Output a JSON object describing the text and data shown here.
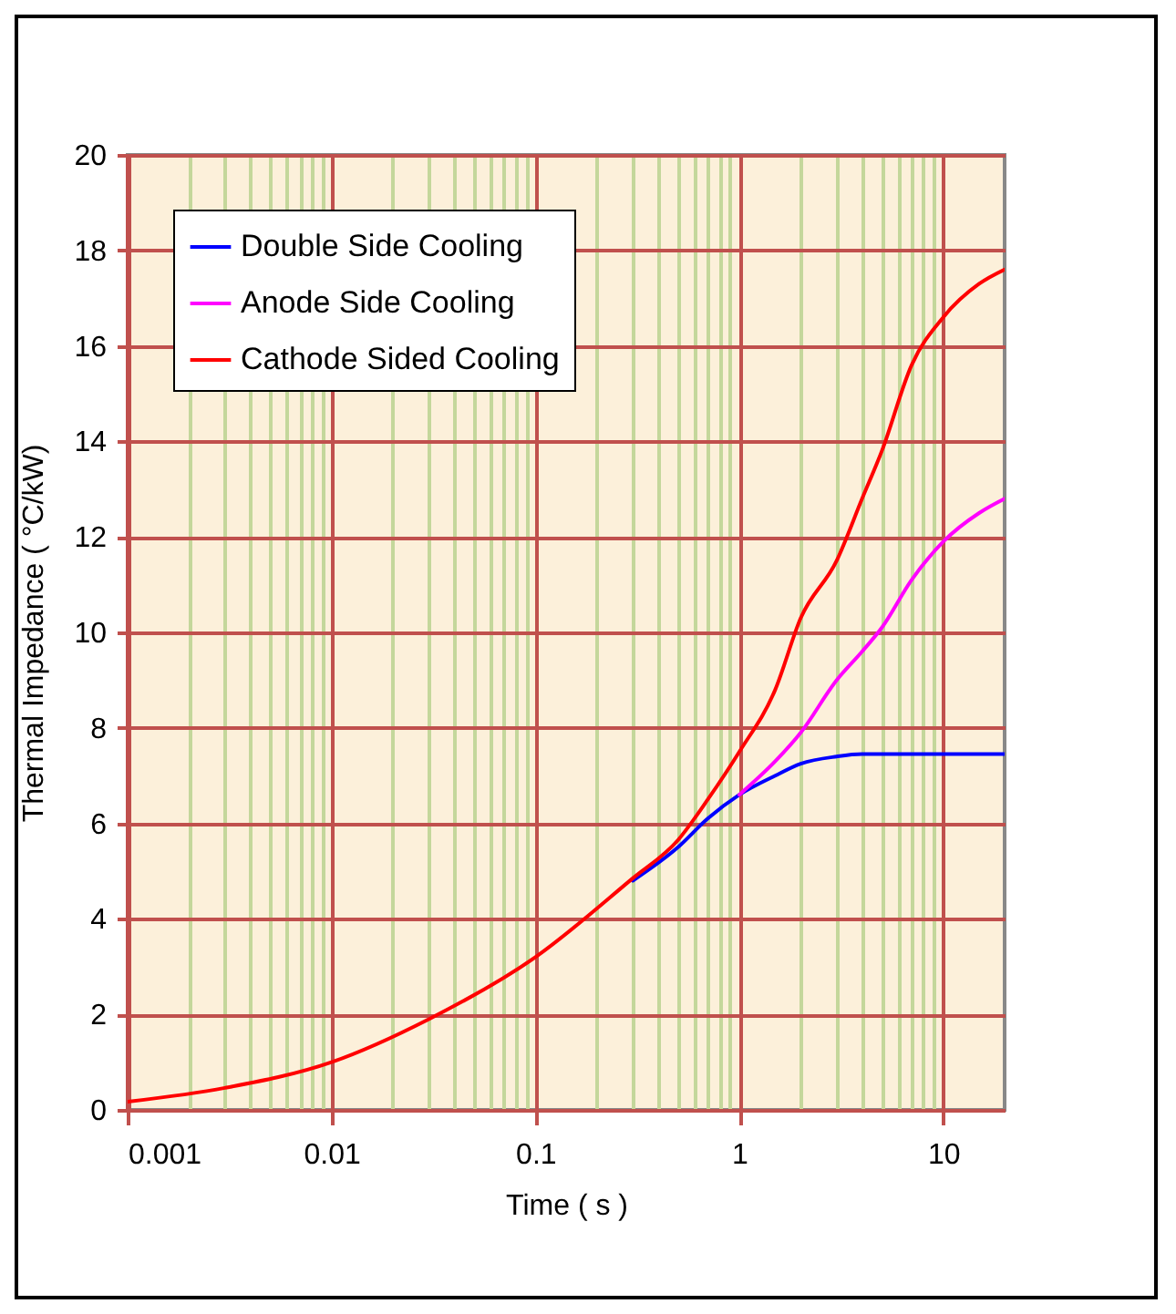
{
  "chart_data": {
    "type": "line",
    "xlabel": "Time ( s )",
    "ylabel": "Thermal Impedance ( °C/kW)",
    "log": "x",
    "x": [
      0.001,
      0.003,
      0.01,
      0.03,
      0.1,
      0.3,
      0.5,
      0.7,
      1,
      1.5,
      2,
      3,
      4,
      5,
      7,
      10,
      15,
      20
    ],
    "series": [
      {
        "name": "Double Side Cooling",
        "color": "#0000ff",
        "values": [
          null,
          null,
          null,
          null,
          null,
          4.8,
          5.5,
          6.1,
          6.6,
          7.0,
          7.25,
          7.4,
          7.45,
          7.45,
          7.45,
          7.45,
          7.45,
          7.45
        ]
      },
      {
        "name": "Anode Side Cooling",
        "color": "#ff00ff",
        "values": [
          null,
          null,
          null,
          null,
          null,
          null,
          null,
          null,
          6.6,
          7.3,
          7.9,
          9.0,
          9.6,
          10.1,
          11.1,
          11.9,
          12.5,
          12.8
        ]
      },
      {
        "name": "Cathode Sided Cooling",
        "color": "#ff0000",
        "values": [
          0.17,
          0.46,
          1.0,
          1.9,
          3.2,
          4.85,
          5.65,
          6.5,
          7.5,
          8.8,
          10.3,
          11.5,
          12.8,
          13.8,
          15.6,
          16.6,
          17.3,
          17.6
        ]
      }
    ],
    "xlim": [
      0.001,
      20
    ],
    "xticks": [
      0.001,
      {
        "value": 0.002,
        "label": null
      },
      {
        "value": 0.003,
        "label": null
      },
      {
        "value": 0.004,
        "label": null
      },
      {
        "value": 0.005,
        "label": null
      },
      {
        "value": 0.006,
        "label": null
      },
      {
        "value": 0.007,
        "label": null
      },
      {
        "value": 0.008,
        "label": null
      },
      {
        "value": 0.009,
        "label": null
      },
      0.01,
      {
        "value": 0.02,
        "label": null
      },
      {
        "value": 0.03,
        "label": null
      },
      {
        "value": 0.04,
        "label": null
      },
      {
        "value": 0.05,
        "label": null
      },
      {
        "value": 0.06,
        "label": null
      },
      {
        "value": 0.07,
        "label": null
      },
      {
        "value": 0.08,
        "label": null
      },
      {
        "value": 0.09,
        "label": null
      },
      0.1,
      {
        "value": 0.2,
        "label": null
      },
      {
        "value": 0.3,
        "label": null
      },
      {
        "value": 0.4,
        "label": null
      },
      {
        "value": 0.5,
        "label": null
      },
      {
        "value": 0.6,
        "label": null
      },
      {
        "value": 0.7,
        "label": null
      },
      {
        "value": 0.8,
        "label": null
      },
      {
        "value": 0.9,
        "label": null
      },
      1,
      {
        "value": 2,
        "label": null
      },
      {
        "value": 3,
        "label": null
      },
      {
        "value": 4,
        "label": null
      },
      {
        "value": 5,
        "label": null
      },
      {
        "value": 6,
        "label": null
      },
      {
        "value": 7,
        "label": null
      },
      {
        "value": 8,
        "label": null
      },
      {
        "value": 9,
        "label": null
      },
      10
    ],
    "ylim": [
      0,
      20
    ],
    "yticks": [
      0,
      2,
      4,
      6,
      8,
      10,
      12,
      14,
      16,
      18,
      20
    ],
    "grid": true,
    "legend": "top left"
  }
}
